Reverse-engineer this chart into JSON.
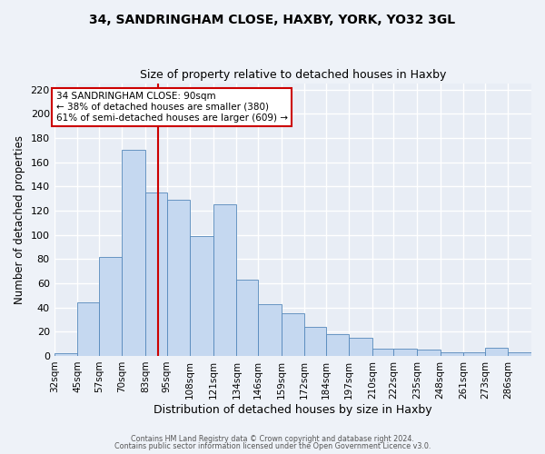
{
  "title": "34, SANDRINGHAM CLOSE, HAXBY, YORK, YO32 3GL",
  "subtitle": "Size of property relative to detached houses in Haxby",
  "xlabel": "Distribution of detached houses by size in Haxby",
  "ylabel": "Number of detached properties",
  "footer_lines": [
    "Contains HM Land Registry data © Crown copyright and database right 2024.",
    "Contains public sector information licensed under the Open Government Licence v3.0."
  ],
  "bin_labels": [
    "32sqm",
    "45sqm",
    "57sqm",
    "70sqm",
    "83sqm",
    "95sqm",
    "108sqm",
    "121sqm",
    "134sqm",
    "146sqm",
    "159sqm",
    "172sqm",
    "184sqm",
    "197sqm",
    "210sqm",
    "222sqm",
    "235sqm",
    "248sqm",
    "261sqm",
    "273sqm",
    "286sqm"
  ],
  "bin_edges": [
    32,
    45,
    57,
    70,
    83,
    95,
    108,
    121,
    134,
    146,
    159,
    172,
    184,
    197,
    210,
    222,
    235,
    248,
    261,
    273,
    286,
    299
  ],
  "bar_heights": [
    2,
    44,
    82,
    170,
    135,
    129,
    99,
    125,
    63,
    43,
    35,
    24,
    18,
    15,
    6,
    6,
    5,
    3,
    3,
    7,
    3
  ],
  "bar_color": "#c5d8f0",
  "bar_edge_color": "#5588bb",
  "vline_x": 90,
  "vline_color": "#cc0000",
  "ylim": [
    0,
    225
  ],
  "yticks": [
    0,
    20,
    40,
    60,
    80,
    100,
    120,
    140,
    160,
    180,
    200,
    220
  ],
  "annotation_title": "34 SANDRINGHAM CLOSE: 90sqm",
  "annotation_line2": "← 38% of detached houses are smaller (380)",
  "annotation_line3": "61% of semi-detached houses are larger (609) →",
  "annotation_box_color": "#ffffff",
  "annotation_box_edge": "#cc0000",
  "background_color": "#eef2f8",
  "grid_color": "#ffffff",
  "axis_bg_color": "#e8edf5"
}
